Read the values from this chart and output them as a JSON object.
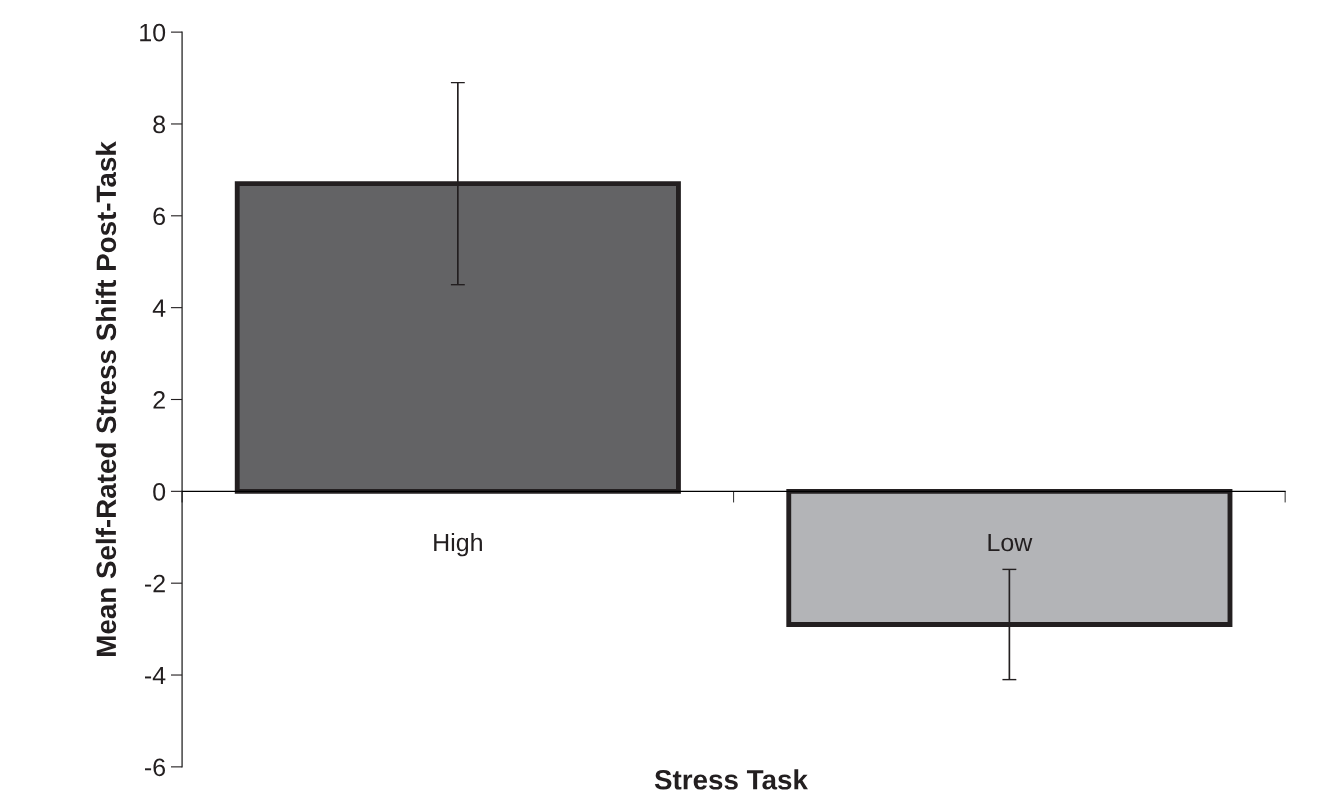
{
  "chart_data": {
    "type": "bar",
    "xlabel": "Stress Task",
    "ylabel": "Mean Self-Rated Stress Shift Post-Task",
    "categories": [
      "High",
      "Low"
    ],
    "values": [
      6.7,
      -2.9
    ],
    "errors": [
      2.2,
      1.2
    ],
    "colors": [
      "#636365",
      "#b3b4b7"
    ],
    "ylim": [
      -6,
      10
    ],
    "yticks": [
      -6,
      -4,
      -2,
      0,
      2,
      4,
      6,
      8,
      10
    ]
  }
}
